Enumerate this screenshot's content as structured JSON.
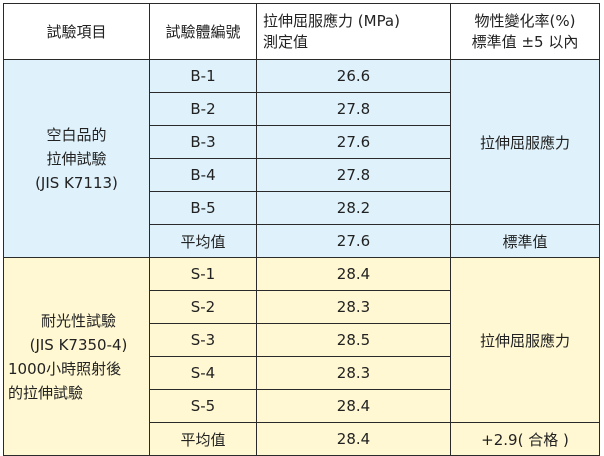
{
  "headers": {
    "test_item": "試驗項目",
    "specimen_no": "試驗體編號",
    "yield_stress_line1": "拉伸屈服應力 (MPa)",
    "yield_stress_line2": "測定值",
    "change_rate_line1": "物性變化率(%)",
    "change_rate_line2": "標準值 ±5 以內"
  },
  "group_blank": {
    "label_lines": [
      "空白品的",
      "拉伸試驗",
      "(JIS K7113)"
    ],
    "rows": [
      {
        "id": "B-1",
        "value": "26.6"
      },
      {
        "id": "B-2",
        "value": "27.8"
      },
      {
        "id": "B-3",
        "value": "27.6"
      },
      {
        "id": "B-4",
        "value": "27.8"
      },
      {
        "id": "B-5",
        "value": "28.2"
      }
    ],
    "avg_label": "平均值",
    "avg_value": "27.6",
    "property_label": "拉伸屈服應力",
    "avg_note": "標準值"
  },
  "group_light": {
    "label_lines": [
      "耐光性試驗",
      "(JIS K7350-4)",
      "1000小時照射後",
      "的拉伸試驗"
    ],
    "rows": [
      {
        "id": "S-1",
        "value": "28.4"
      },
      {
        "id": "S-2",
        "value": "28.3"
      },
      {
        "id": "S-3",
        "value": "28.5"
      },
      {
        "id": "S-4",
        "value": "28.3"
      },
      {
        "id": "S-5",
        "value": "28.4"
      }
    ],
    "avg_label": "平均值",
    "avg_value": "28.4",
    "property_label": "拉伸屈服應力",
    "avg_note": "+2.9( 合格 )"
  },
  "colors": {
    "blank_group_bg": "#dff2fb",
    "light_group_bg": "#fff8d2",
    "border": "#2a2a2a"
  }
}
